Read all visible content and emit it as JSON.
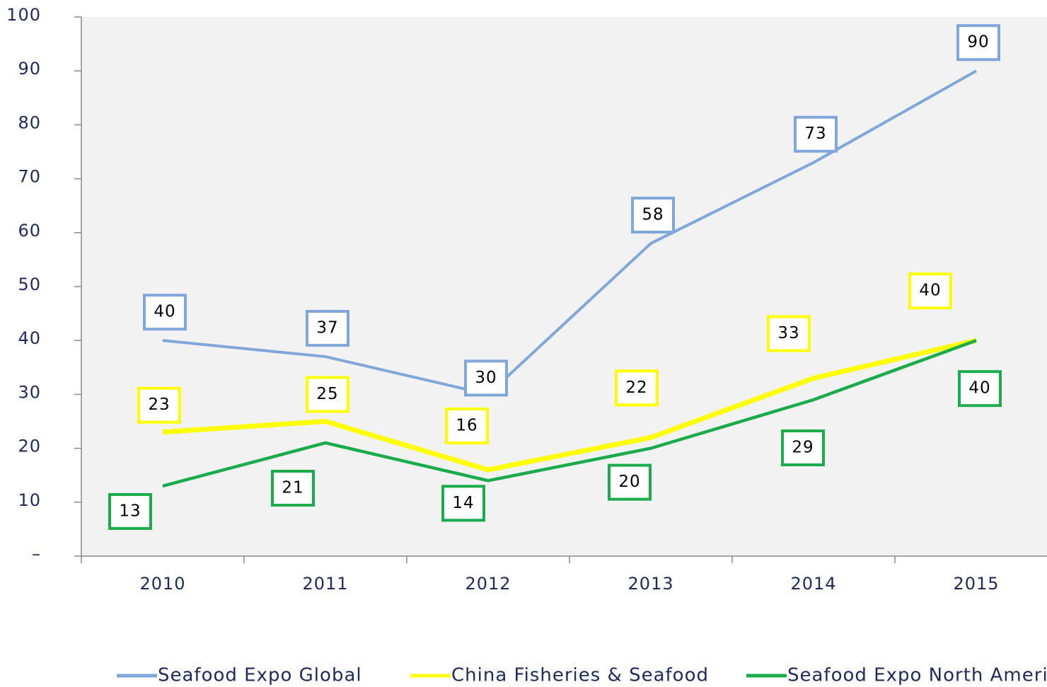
{
  "chart_data": {
    "type": "line",
    "categories": [
      "2010",
      "2011",
      "2012",
      "2013",
      "2014",
      "2015"
    ],
    "series": [
      {
        "name": "Seafood Expo Global",
        "color": "#7fa7d9",
        "values": [
          40,
          37,
          30,
          58,
          73,
          90
        ]
      },
      {
        "name": "China Fisheries & Seafood",
        "color": "#ffff00",
        "values": [
          23,
          25,
          16,
          22,
          33,
          40
        ]
      },
      {
        "name": "Seafood Expo North America",
        "color": "#1aab4a",
        "values": [
          13,
          21,
          14,
          20,
          29,
          40
        ]
      }
    ],
    "ylim": [
      0,
      100
    ],
    "yticks": [
      {
        "value": 0,
        "label": "–"
      },
      10,
      20,
      30,
      40,
      50,
      60,
      70,
      80,
      90,
      100
    ],
    "legend": "bottom"
  }
}
